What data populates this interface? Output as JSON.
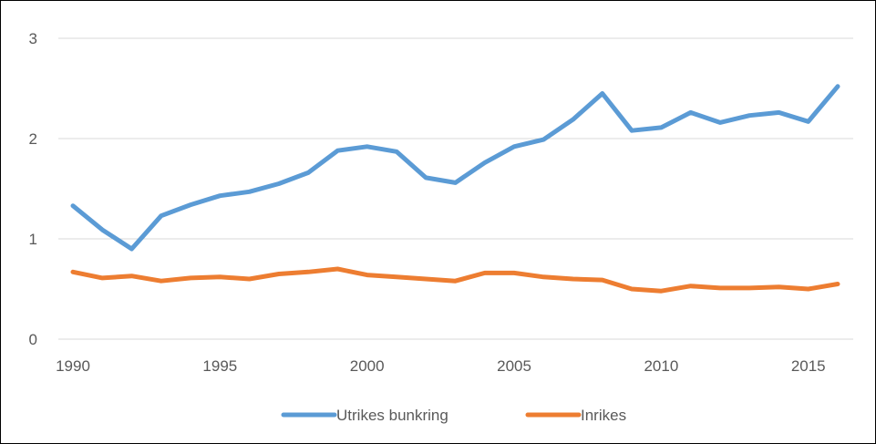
{
  "chart_data": {
    "type": "line",
    "title": "",
    "xlabel": "",
    "ylabel": "",
    "x": [
      1990,
      1991,
      1992,
      1993,
      1994,
      1995,
      1996,
      1997,
      1998,
      1999,
      2000,
      2001,
      2002,
      2003,
      2004,
      2005,
      2006,
      2007,
      2008,
      2009,
      2010,
      2011,
      2012,
      2013,
      2014,
      2015,
      2016
    ],
    "xlim": [
      1990,
      2016
    ],
    "x_ticks": [
      1990,
      1995,
      2000,
      2005,
      2010,
      2015
    ],
    "ylim": [
      0,
      3
    ],
    "y_ticks": [
      0,
      1,
      2,
      3
    ],
    "grid": true,
    "legend_position": "bottom",
    "series": [
      {
        "name": "Utrikes bunkring",
        "color": "#5b9bd5",
        "values": [
          1.33,
          1.09,
          0.9,
          1.23,
          1.34,
          1.43,
          1.47,
          1.55,
          1.66,
          1.88,
          1.92,
          1.87,
          1.61,
          1.56,
          1.76,
          1.92,
          1.99,
          2.19,
          2.45,
          2.08,
          2.11,
          2.26,
          2.16,
          2.23,
          2.26,
          2.17,
          2.52
        ]
      },
      {
        "name": "Inrikes",
        "color": "#ed7d31",
        "values": [
          0.67,
          0.61,
          0.63,
          0.58,
          0.61,
          0.62,
          0.6,
          0.65,
          0.67,
          0.7,
          0.64,
          0.62,
          0.6,
          0.58,
          0.66,
          0.66,
          0.62,
          0.6,
          0.59,
          0.5,
          0.48,
          0.53,
          0.51,
          0.51,
          0.52,
          0.5,
          0.55
        ]
      }
    ]
  }
}
